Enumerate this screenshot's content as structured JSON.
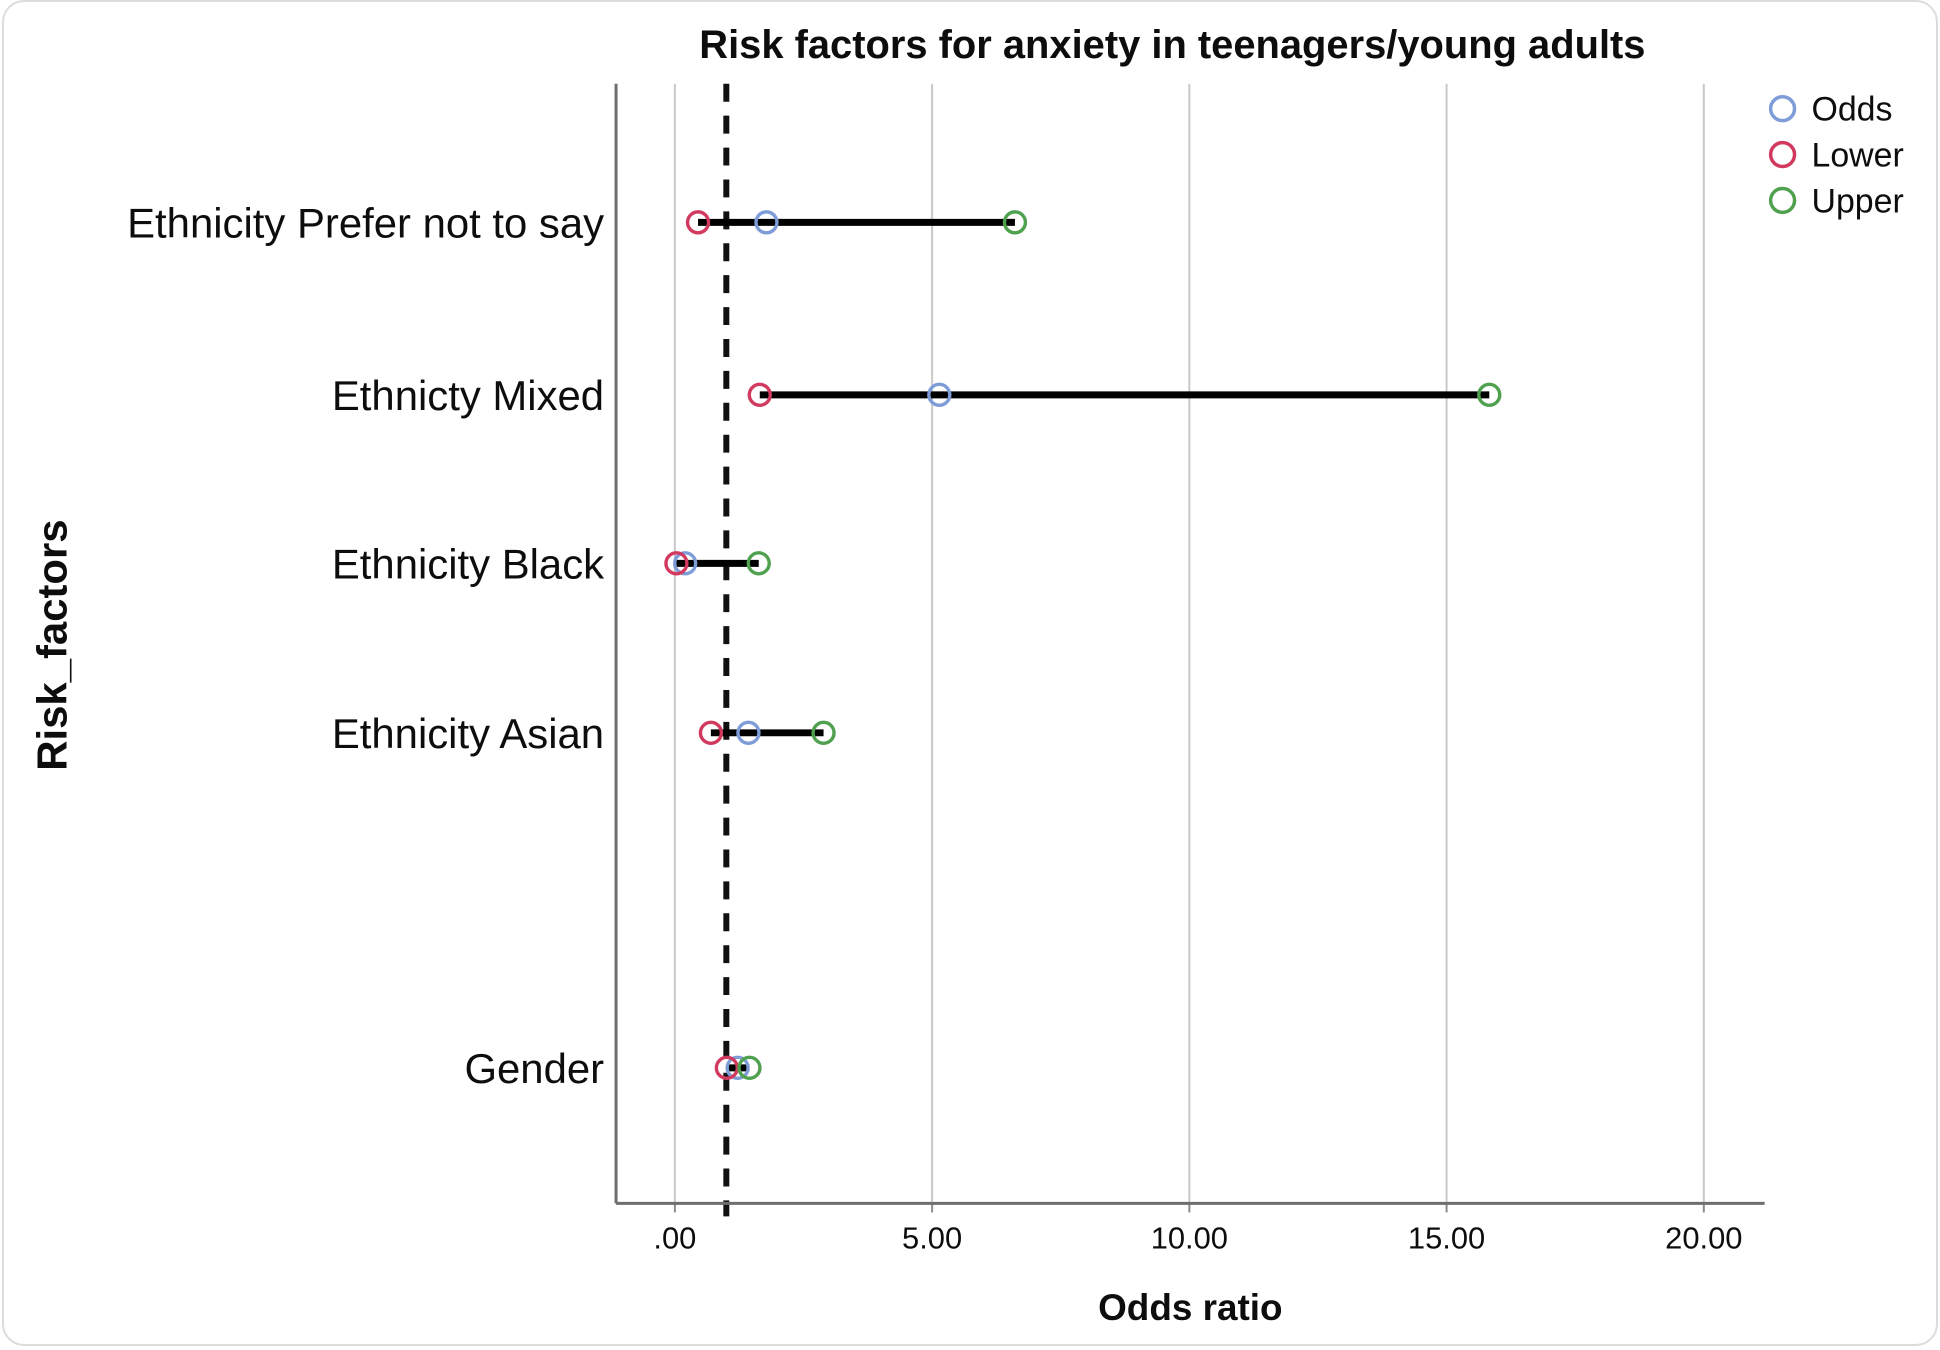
{
  "chart_data": {
    "type": "scatter",
    "chart_style": "forest-dot-interval-plot",
    "title": "Risk factors for anxiety in teenagers/young adults",
    "xlabel": "Odds ratio",
    "ylabel": "Risk_factors",
    "categories": [
      "Ethnicity Prefer not to say",
      "Ethnicty Mixed",
      "Ethnicity Black",
      "Ethnicity Asian",
      "Gender"
    ],
    "series": [
      {
        "name": "Odds",
        "color": "#7d9cd8",
        "values": [
          1.78,
          5.14,
          0.2,
          1.43,
          1.22
        ]
      },
      {
        "name": "Lower",
        "color": "#d13a5e",
        "values": [
          0.45,
          1.65,
          0.03,
          0.7,
          1.01
        ]
      },
      {
        "name": "Upper",
        "color": "#4fa14f",
        "values": [
          6.61,
          15.83,
          1.63,
          2.89,
          1.45
        ]
      }
    ],
    "x_ticks": [
      {
        "value": 0,
        "label": ".00"
      },
      {
        "value": 5,
        "label": "5.00"
      },
      {
        "value": 10,
        "label": "10.00"
      },
      {
        "value": 15,
        "label": "15.00"
      },
      {
        "value": 20,
        "label": "20.00"
      }
    ],
    "xlim": [
      -1.15,
      21.2
    ],
    "reference_line_x": 1.0,
    "grid": true,
    "legend_position": "top-right",
    "colors": {
      "interval_line": "#000000",
      "gridline": "#c9c9c9",
      "axis": "#6e6e6e",
      "reference_line": "#111111"
    }
  }
}
